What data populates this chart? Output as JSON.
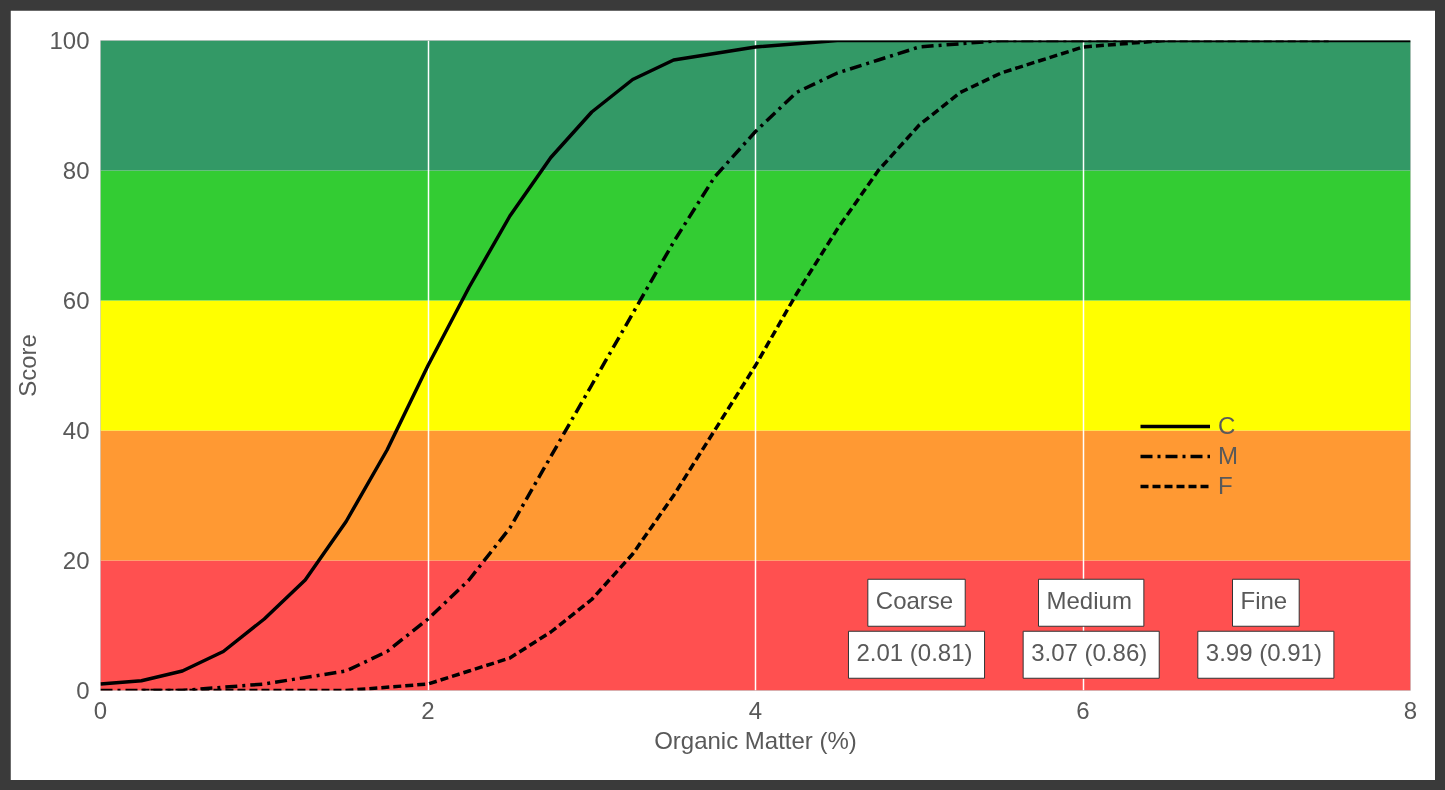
{
  "chart_data": {
    "type": "line",
    "xlabel": "Organic Matter (%)",
    "ylabel": "Score",
    "xlim": [
      0,
      8
    ],
    "ylim": [
      0,
      100
    ],
    "xticks": [
      0,
      2,
      4,
      6,
      8
    ],
    "yticks": [
      0,
      20,
      40,
      60,
      80,
      100
    ],
    "grid": "x",
    "legend": "right",
    "marker": "none",
    "series": [
      {
        "name": "C",
        "color": "#000000",
        "line_style": "solid",
        "x": [
          0,
          0.25,
          0.5,
          0.75,
          1,
          1.25,
          1.5,
          1.75,
          2,
          2.25,
          2.5,
          2.75,
          3,
          3.25,
          3.5,
          3.75,
          4,
          4.5,
          5,
          8
        ],
        "values": [
          1,
          1.5,
          3,
          6,
          11,
          17,
          26,
          37,
          50,
          62,
          73,
          82,
          89,
          94,
          97,
          98,
          99,
          100,
          100,
          100
        ]
      },
      {
        "name": "M",
        "color": "#000000",
        "line_style": "dashdot",
        "x": [
          0,
          0.5,
          1,
          1.5,
          1.75,
          2,
          2.25,
          2.5,
          2.75,
          3,
          3.25,
          3.5,
          3.75,
          4,
          4.25,
          4.5,
          4.75,
          5,
          5.5,
          6,
          6.5
        ],
        "values": [
          0,
          0,
          1,
          3,
          6,
          11,
          17,
          25,
          36,
          47,
          58,
          69,
          79,
          86,
          92,
          95,
          97,
          99,
          100,
          100,
          100
        ]
      },
      {
        "name": "F",
        "color": "#000000",
        "line_style": "dashed",
        "x": [
          0.25,
          1,
          1.5,
          2,
          2.25,
          2.5,
          2.75,
          3,
          3.25,
          3.5,
          3.75,
          4,
          4.25,
          4.5,
          4.75,
          5,
          5.25,
          5.5,
          5.75,
          6,
          6.5,
          7,
          7.5
        ],
        "values": [
          0,
          0,
          0,
          1,
          3,
          5,
          9,
          14,
          21,
          30,
          40,
          50,
          61,
          71,
          80,
          87,
          92,
          95,
          97,
          99,
          100,
          100,
          100
        ]
      }
    ],
    "bands": [
      {
        "axis": "y",
        "from": 0,
        "to": 20,
        "color": "#ff5050"
      },
      {
        "axis": "y",
        "from": 20,
        "to": 40,
        "color": "#ff9933"
      },
      {
        "axis": "y",
        "from": 40,
        "to": 60,
        "color": "#ffff00"
      },
      {
        "axis": "y",
        "from": 60,
        "to": 80,
        "color": "#33cc33"
      },
      {
        "axis": "y",
        "from": 80,
        "to": 100,
        "color": "#339966"
      }
    ],
    "annotations": [
      "Coarse",
      "Medium",
      "Fine",
      "2.01 (0.81)",
      "3.07 (0.86)",
      "3.99 (0.91)"
    ]
  }
}
